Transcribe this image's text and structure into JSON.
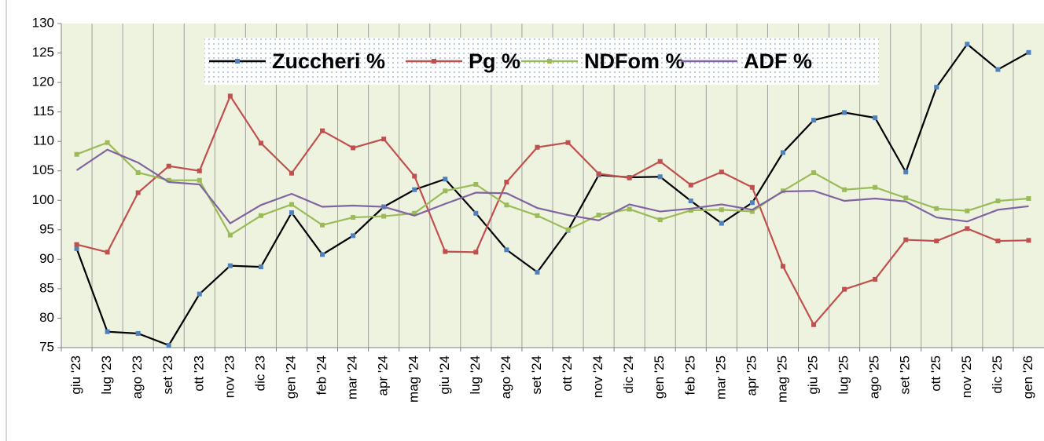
{
  "chart_data": {
    "type": "line",
    "categories": [
      "giu '23",
      "lug '23",
      "ago '23",
      "set '23",
      "ott '23",
      "nov '23",
      "dic 23",
      "gen '24",
      "feb '24",
      "mar '24",
      "apr '24",
      "mag '24",
      "giu '24",
      "lug '24",
      "ago '24",
      "set '24",
      "ott '24",
      "nov '24",
      "dic '24",
      "gen '25",
      "feb '25",
      "mar '25",
      "apr '25",
      "mag '25",
      "giu '25",
      "lug '25",
      "ago '25",
      "set '25",
      "ott '25",
      "nov '25",
      "dic '25",
      "gen '26"
    ],
    "series": [
      {
        "name": "Zuccheri %",
        "color": "#000000",
        "marker_color": "#4f81bd",
        "values": [
          91.8,
          77.7,
          77.4,
          75.4,
          84.1,
          88.9,
          88.7,
          97.9,
          90.8,
          94.0,
          98.9,
          101.8,
          103.6,
          97.8,
          91.6,
          87.8,
          94.9,
          104.3,
          103.9,
          104.0,
          99.9,
          96.1,
          99.6,
          108.1,
          113.6,
          114.9,
          114.0,
          104.8,
          119.2,
          126.5,
          122.2,
          125.1
        ]
      },
      {
        "name": "Pg %",
        "color": "#c0504d",
        "marker_color": "#c0504d",
        "values": [
          92.5,
          91.2,
          101.3,
          105.8,
          105.0,
          117.7,
          109.7,
          104.6,
          111.8,
          108.9,
          110.4,
          104.1,
          91.3,
          91.2,
          103.1,
          109.0,
          109.8,
          104.5,
          103.8,
          106.6,
          102.6,
          104.8,
          102.2,
          88.8,
          78.9,
          84.9,
          86.6,
          93.3,
          93.1,
          95.2,
          93.1,
          93.2
        ]
      },
      {
        "name": "NDFom %",
        "color": "#9bbb59",
        "marker_color": "#9bbb59",
        "values": [
          107.8,
          109.8,
          104.7,
          103.4,
          103.4,
          94.1,
          97.4,
          99.3,
          95.8,
          97.1,
          97.3,
          97.8,
          101.6,
          102.7,
          99.2,
          97.4,
          95.0,
          97.5,
          98.5,
          96.7,
          98.3,
          98.4,
          98.1,
          101.6,
          104.7,
          101.8,
          102.2,
          100.4,
          98.6,
          98.2,
          99.9,
          100.3
        ]
      },
      {
        "name": "ADF %",
        "color": "#8064a2",
        "values": [
          105.1,
          108.6,
          106.4,
          103.1,
          102.7,
          96.1,
          99.2,
          101.1,
          98.9,
          99.1,
          98.9,
          97.4,
          99.4,
          101.3,
          101.2,
          98.7,
          97.5,
          96.6,
          99.3,
          98.1,
          98.6,
          99.3,
          98.4,
          101.5,
          101.6,
          99.9,
          100.3,
          99.8,
          97.1,
          96.4,
          98.4,
          99.0
        ]
      }
    ],
    "ylim": [
      75,
      130
    ],
    "yticks": [
      75,
      80,
      85,
      90,
      95,
      100,
      105,
      110,
      115,
      120,
      125,
      130
    ],
    "grid": "x",
    "legend": "top",
    "plot_background": "#eef3df"
  }
}
